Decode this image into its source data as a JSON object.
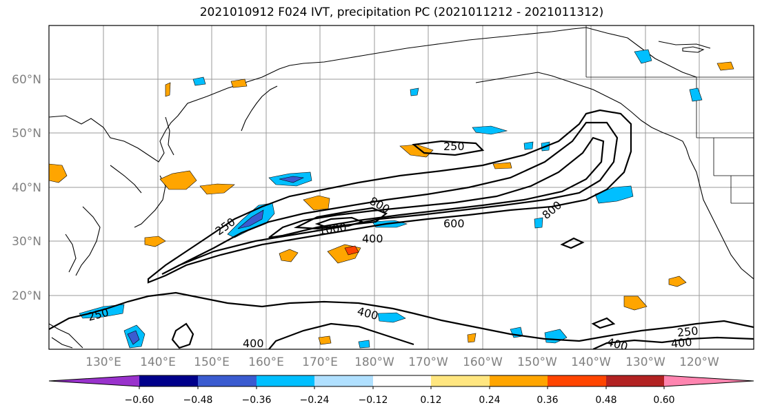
{
  "title": "2021010912 F024 IVT, precipitation PC (2021011212 - 2021011312)",
  "lat_labels": [
    "60°N",
    "50°N",
    "40°N",
    "30°N",
    "20°N"
  ],
  "lon_labels": [
    "130°E",
    "140°E",
    "150°E",
    "160°E",
    "170°E",
    "180°W",
    "170°W",
    "160°W",
    "150°W",
    "140°W",
    "130°W",
    "120°W"
  ],
  "contour_labels": [
    "250",
    "800",
    "250",
    "1000",
    "600",
    "400",
    "800",
    "250",
    "400",
    "400",
    "250",
    "400",
    "400"
  ],
  "colorbar": {
    "ticks": [
      "−0.60",
      "−0.48",
      "−0.36",
      "−0.24",
      "−0.12",
      "0.12",
      "0.24",
      "0.36",
      "0.48",
      "0.60"
    ],
    "colors": [
      "#9932cc",
      "#00008b",
      "#3a5bd0",
      "#00bfff",
      "#b0e0ff",
      "#ffffff",
      "#ffe680",
      "#ffa500",
      "#ff4500",
      "#b22222",
      "#ff85b0"
    ]
  }
}
